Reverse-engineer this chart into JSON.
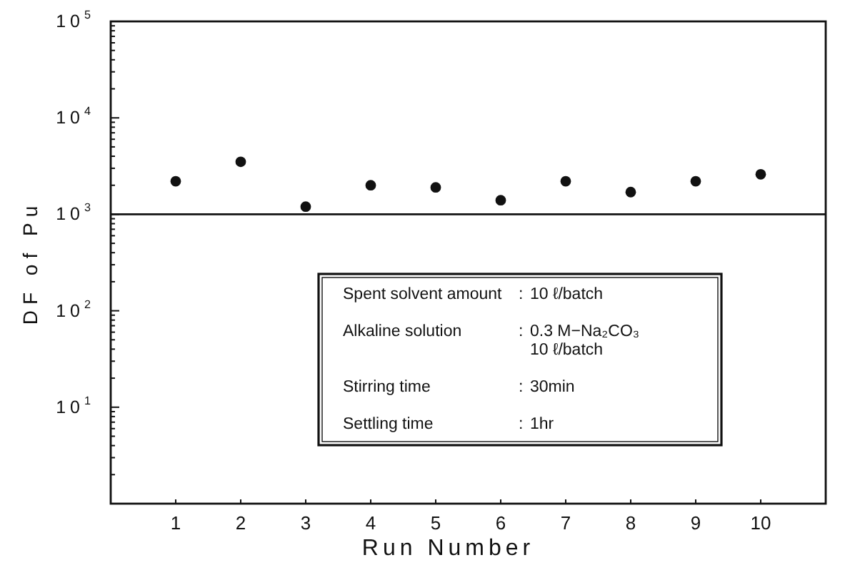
{
  "chart_data": {
    "type": "scatter",
    "xlabel": "Run Number",
    "ylabel": "DF of Pu",
    "x": [
      1,
      2,
      3,
      4,
      5,
      6,
      7,
      8,
      9,
      10
    ],
    "values": [
      2200,
      3500,
      1200,
      2000,
      1900,
      1400,
      2200,
      1700,
      2200,
      2600
    ],
    "color": "#111111",
    "marker": "circle",
    "xlim": [
      0,
      11
    ],
    "xticks": [
      1,
      2,
      3,
      4,
      5,
      6,
      7,
      8,
      9,
      10
    ],
    "ylim": [
      1,
      100000
    ],
    "log": "y",
    "yticks": [
      {
        "value": 2,
        "label": null
      },
      {
        "value": 3,
        "label": null
      },
      {
        "value": 4,
        "label": null
      },
      {
        "value": 5,
        "label": null
      },
      {
        "value": 6,
        "label": null
      },
      {
        "value": 7,
        "label": null
      },
      {
        "value": 8,
        "label": null
      },
      {
        "value": 9,
        "label": null
      },
      {
        "value": 10,
        "label": "10$^{1}$"
      },
      {
        "value": 20,
        "label": null
      },
      {
        "value": 30,
        "label": null
      },
      {
        "value": 40,
        "label": null
      },
      {
        "value": 50,
        "label": null
      },
      {
        "value": 60,
        "label": null
      },
      {
        "value": 70,
        "label": null
      },
      {
        "value": 80,
        "label": null
      },
      {
        "value": 90,
        "label": null
      },
      {
        "value": 100,
        "label": "10$^{2}$"
      },
      {
        "value": 200,
        "label": null
      },
      {
        "value": 300,
        "label": null
      },
      {
        "value": 400,
        "label": null
      },
      {
        "value": 500,
        "label": null
      },
      {
        "value": 600,
        "label": null
      },
      {
        "value": 700,
        "label": null
      },
      {
        "value": 800,
        "label": null
      },
      {
        "value": 900,
        "label": null
      },
      {
        "value": 1000,
        "label": "10$^{3}$"
      },
      {
        "value": 2000,
        "label": null
      },
      {
        "value": 3000,
        "label": null
      },
      {
        "value": 4000,
        "label": null
      },
      {
        "value": 5000,
        "label": null
      },
      {
        "value": 6000,
        "label": null
      },
      {
        "value": 7000,
        "label": null
      },
      {
        "value": 8000,
        "label": null
      },
      {
        "value": 9000,
        "label": null
      },
      {
        "value": 10000,
        "label": "10$^{4}$"
      },
      {
        "value": 20000,
        "label": null
      },
      {
        "value": 30000,
        "label": null
      },
      {
        "value": 40000,
        "label": null
      },
      {
        "value": 50000,
        "label": null
      },
      {
        "value": 60000,
        "label": null
      },
      {
        "value": 70000,
        "label": null
      },
      {
        "value": 80000,
        "label": null
      },
      {
        "value": 90000,
        "label": null
      },
      {
        "value": 100000,
        "label": "10$^{5}$"
      }
    ],
    "ref_lines": [
      {
        "axis": "y",
        "value": 1000,
        "color": "#111111"
      }
    ],
    "annotations": [
      "Spent solvent amount : 10 ℓ/batch",
      "Alkaline solution : 0.3 M−Na₂CO₃\n10 ℓ/batch",
      "Stirring time : 30min",
      "Settling time : 1hr"
    ]
  }
}
